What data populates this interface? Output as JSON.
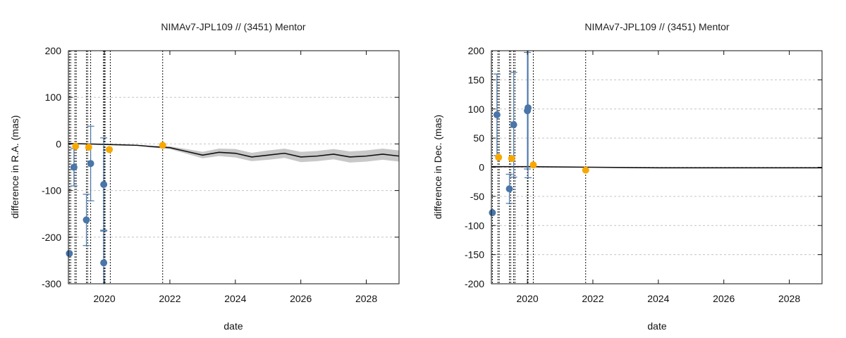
{
  "chart_data": [
    {
      "type": "scatter",
      "title": "NIMAv7-JPL109 // (3451) Mentor",
      "xlabel": "date",
      "ylabel": "difference in R.A. (mas)",
      "xlim": [
        2018.9,
        2029.0
      ],
      "ylim": [
        -300,
        200
      ],
      "xticks": [
        2020,
        2022,
        2024,
        2026,
        2028
      ],
      "yticks": [
        -300,
        -200,
        -100,
        0,
        100,
        200
      ],
      "grid": true,
      "colors": {
        "observed": "#4a76a8",
        "gaia": "#f7a800",
        "model": "#111111",
        "band": "#c8c8c8"
      },
      "vlines": [
        2018.93,
        2018.97,
        2019.1,
        2019.14,
        2019.45,
        2019.49,
        2019.58,
        2019.97,
        2020.0,
        2020.02,
        2020.18,
        2021.78
      ],
      "model": {
        "x": [
          2018.9,
          2019.5,
          2020.0,
          2020.5,
          2021.0,
          2021.5,
          2022.0,
          2022.5,
          2023.0,
          2023.5,
          2024.0,
          2024.5,
          2025.0,
          2025.5,
          2026.0,
          2026.5,
          2027.0,
          2027.5,
          2028.0,
          2028.5,
          2029.0
        ],
        "y": [
          1,
          0,
          -1,
          -2,
          -3,
          -6,
          -8,
          -16,
          -24,
          -18,
          -20,
          -28,
          -24,
          -20,
          -28,
          -26,
          -22,
          -28,
          -26,
          -22,
          -26
        ],
        "band": [
          0,
          0,
          0,
          0,
          1,
          2,
          3,
          5,
          7,
          8,
          9,
          9,
          10,
          10,
          11,
          11,
          11,
          12,
          12,
          12,
          12
        ]
      },
      "series": [
        {
          "name": "",
          "role": "observed",
          "points": [
            {
              "x": 2018.93,
              "y": -235,
              "err": 0
            },
            {
              "x": 2019.07,
              "y": -50,
              "err": 40
            },
            {
              "x": 2019.45,
              "y": -163,
              "err": 55
            },
            {
              "x": 2019.58,
              "y": -42,
              "err": 80
            },
            {
              "x": 2019.98,
              "y": -87,
              "err": 100
            },
            {
              "x": 2019.98,
              "y": -255,
              "err": 70
            }
          ]
        },
        {
          "name": "",
          "role": "gaia",
          "points": [
            {
              "x": 2019.12,
              "y": -5,
              "err": 0
            },
            {
              "x": 2019.52,
              "y": -7,
              "err": 0
            },
            {
              "x": 2020.15,
              "y": -12,
              "err": 0
            },
            {
              "x": 2021.78,
              "y": -3,
              "err": 0
            }
          ]
        }
      ]
    },
    {
      "type": "scatter",
      "title": "NIMAv7-JPL109 // (3451) Mentor",
      "xlabel": "date",
      "ylabel": "difference in Dec. (mas)",
      "xlim": [
        2018.9,
        2029.0
      ],
      "ylim": [
        -200,
        200
      ],
      "xticks": [
        2020,
        2022,
        2024,
        2026,
        2028
      ],
      "yticks": [
        -200,
        -150,
        -100,
        -50,
        0,
        50,
        100,
        150,
        200
      ],
      "grid": true,
      "colors": {
        "observed": "#4a76a8",
        "gaia": "#f7a800",
        "model": "#111111",
        "band": "#c8c8c8"
      },
      "vlines": [
        2018.93,
        2019.1,
        2019.14,
        2019.45,
        2019.49,
        2019.58,
        2019.62,
        2020.0,
        2020.02,
        2020.18,
        2021.78
      ],
      "model": {
        "x": [
          2018.9,
          2020.0,
          2022.0,
          2024.0,
          2026.0,
          2028.0,
          2029.0
        ],
        "y": [
          1,
          1,
          0,
          -1,
          -1,
          -1,
          -1
        ],
        "band": [
          0,
          0,
          0,
          0,
          0,
          0,
          0
        ]
      },
      "series": [
        {
          "name": "",
          "role": "observed",
          "points": [
            {
              "x": 2018.93,
              "y": -78,
              "err": 0
            },
            {
              "x": 2019.07,
              "y": 90,
              "err": 70
            },
            {
              "x": 2019.45,
              "y": -37,
              "err": 25
            },
            {
              "x": 2019.58,
              "y": 73,
              "err": 90
            },
            {
              "x": 2020.0,
              "y": 97,
              "err": 100
            },
            {
              "x": 2020.02,
              "y": 102,
              "err": 120
            }
          ]
        },
        {
          "name": "",
          "role": "gaia",
          "points": [
            {
              "x": 2019.12,
              "y": 17,
              "err": 0
            },
            {
              "x": 2019.52,
              "y": 15,
              "err": 0
            },
            {
              "x": 2020.18,
              "y": 4,
              "err": 0
            },
            {
              "x": 2021.78,
              "y": -5,
              "err": 0
            }
          ]
        }
      ]
    }
  ]
}
